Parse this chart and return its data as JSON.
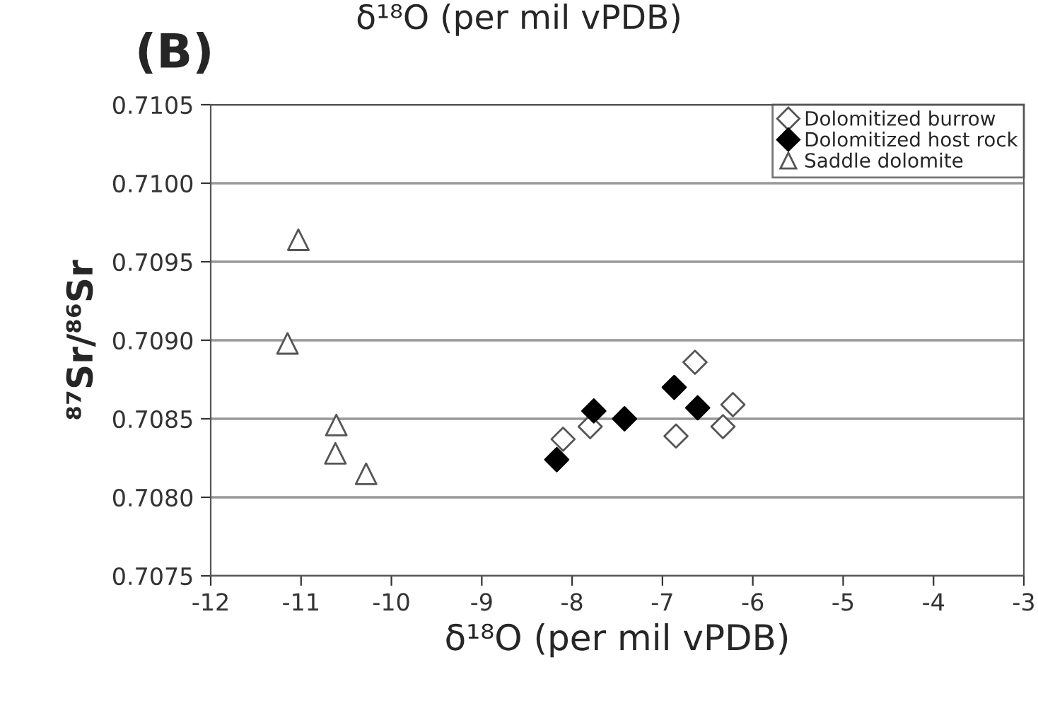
{
  "chart_data": {
    "type": "scatter",
    "title": "δ¹⁸O (per mil vPDB)",
    "xlabel": "δ¹⁸O (per mil vPDB)",
    "ylabel": "⁸⁷Sr/⁸⁶Sr",
    "annotations": [
      "(B)"
    ],
    "series": [
      {
        "name": "Dolomitized burrow",
        "color": "#555555",
        "marker": "diamond",
        "x": [
          -6.64,
          -8.1,
          -7.8,
          -6.85,
          -6.22,
          -6.33
        ],
        "values": [
          0.70886,
          0.70837,
          0.70845,
          0.70839,
          0.70859,
          0.70845
        ]
      },
      {
        "name": "Dolomitized host rock",
        "color": "#000000",
        "marker": "diamond",
        "x": [
          -8.17,
          -7.76,
          -7.42,
          -6.87,
          -6.61
        ],
        "values": [
          0.70824,
          0.70855,
          0.7085,
          0.7087,
          0.70857
        ]
      },
      {
        "name": "Saddle dolomite",
        "color": "#555555",
        "marker": "triangle",
        "x": [
          -11.03,
          -11.15,
          -10.61,
          -10.62,
          -10.28
        ],
        "values": [
          0.70964,
          0.70898,
          0.70846,
          0.70828,
          0.70815
        ]
      }
    ],
    "xlim": [
      -12,
      -3
    ],
    "xticks": [
      -12,
      -11,
      -10,
      -9,
      -8,
      -7,
      -6,
      -5,
      -4,
      -3
    ],
    "ylim": [
      0.7075,
      0.7105
    ],
    "yticks": [
      {
        "value": 0.7075,
        "label": "0.7075"
      },
      {
        "value": 0.708,
        "label": "0.7080"
      },
      {
        "value": 0.7085,
        "label": "0.7085"
      },
      {
        "value": 0.709,
        "label": "0.7090"
      },
      {
        "value": 0.7095,
        "label": "0.7095"
      },
      {
        "value": 0.71,
        "label": "0.7100"
      },
      {
        "value": 0.7105,
        "label": "0.7105"
      }
    ],
    "grid": "y",
    "legend": "top right"
  }
}
